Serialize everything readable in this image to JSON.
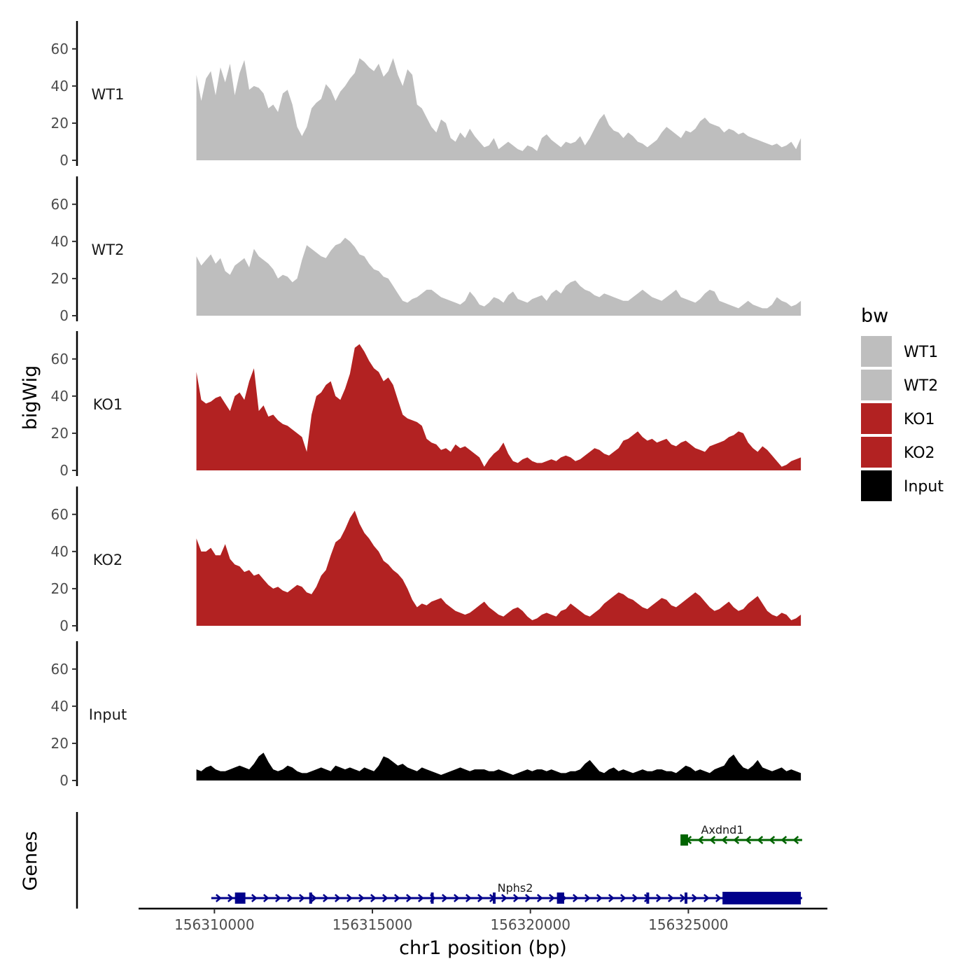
{
  "chart_data": {
    "type": "area",
    "chromosome": "chr1",
    "xlabel": "chr1 position (bp)",
    "ylabel": "bigWig",
    "xlim": [
      156307600,
      156329400
    ],
    "x_ticks": [
      156310000,
      156315000,
      156320000,
      156325000
    ],
    "x_tick_labels": [
      "156310000",
      "156315000",
      "156320000",
      "156325000"
    ],
    "ylim": [
      0,
      75
    ],
    "y_ticks": [
      0,
      20,
      40,
      60
    ],
    "y_tick_labels": [
      "0",
      "20",
      "40",
      "60"
    ],
    "data_range": [
      156309430,
      156328560
    ],
    "series": [
      {
        "name": "WT1",
        "color": "#bebebe",
        "values": [
          46,
          32,
          44,
          48,
          35,
          50,
          42,
          52,
          35,
          47,
          54,
          38,
          40,
          39,
          36,
          28,
          30,
          26,
          36,
          38,
          30,
          18,
          13,
          18,
          28,
          31,
          33,
          41,
          38,
          32,
          37,
          40,
          44,
          47,
          55,
          53,
          50,
          48,
          52,
          45,
          48,
          55,
          46,
          40,
          49,
          46,
          30,
          28,
          23,
          18,
          15,
          22,
          20,
          12,
          10,
          15,
          12,
          17,
          13,
          10,
          7,
          8,
          12,
          6,
          8,
          10,
          8,
          6,
          5,
          8,
          7,
          5,
          12,
          14,
          11,
          9,
          7,
          10,
          9,
          10,
          13,
          8,
          12,
          17,
          22,
          25,
          19,
          16,
          15,
          12,
          15,
          13,
          10,
          9,
          7,
          9,
          11,
          15,
          18,
          16,
          14,
          12,
          16,
          15,
          17,
          21,
          23,
          20,
          19,
          18,
          15,
          17,
          16,
          14,
          15,
          13,
          12,
          11,
          10,
          9,
          8,
          9,
          7,
          8,
          10,
          6,
          12
        ]
      },
      {
        "name": "WT2",
        "color": "#bebebe",
        "values": [
          32,
          27,
          30,
          33,
          28,
          31,
          24,
          22,
          27,
          29,
          31,
          26,
          36,
          32,
          30,
          28,
          25,
          20,
          22,
          21,
          18,
          20,
          30,
          38,
          36,
          34,
          32,
          31,
          35,
          38,
          39,
          42,
          40,
          37,
          33,
          32,
          28,
          25,
          24,
          21,
          20,
          16,
          12,
          8,
          7,
          9,
          10,
          12,
          14,
          14,
          12,
          10,
          9,
          8,
          7,
          6,
          8,
          13,
          10,
          6,
          5,
          7,
          10,
          9,
          7,
          11,
          13,
          9,
          8,
          7,
          9,
          10,
          11,
          8,
          12,
          14,
          12,
          16,
          18,
          19,
          16,
          14,
          13,
          11,
          10,
          12,
          11,
          10,
          9,
          8,
          8,
          10,
          12,
          14,
          12,
          10,
          9,
          8,
          10,
          12,
          14,
          10,
          9,
          8,
          7,
          9,
          12,
          14,
          13,
          8,
          7,
          6,
          5,
          4,
          6,
          8,
          6,
          5,
          4,
          4,
          6,
          10,
          8,
          7,
          5,
          6,
          8
        ]
      },
      {
        "name": "KO1",
        "color": "#b22222",
        "values": [
          53,
          38,
          36,
          37,
          39,
          40,
          36,
          32,
          40,
          42,
          38,
          48,
          55,
          32,
          35,
          29,
          30,
          27,
          25,
          24,
          22,
          20,
          18,
          10,
          30,
          40,
          42,
          46,
          48,
          40,
          38,
          44,
          52,
          66,
          68,
          64,
          59,
          55,
          53,
          48,
          50,
          46,
          38,
          30,
          28,
          27,
          26,
          24,
          17,
          15,
          14,
          11,
          12,
          10,
          14,
          12,
          13,
          11,
          9,
          7,
          2,
          6,
          9,
          11,
          15,
          9,
          5,
          4,
          6,
          7,
          5,
          4,
          4,
          5,
          6,
          5,
          7,
          8,
          7,
          5,
          6,
          8,
          10,
          12,
          11,
          9,
          8,
          10,
          12,
          16,
          17,
          19,
          21,
          18,
          16,
          17,
          15,
          16,
          17,
          14,
          13,
          15,
          16,
          14,
          12,
          11,
          10,
          13,
          14,
          15,
          16,
          18,
          19,
          21,
          20,
          15,
          12,
          10,
          13,
          11,
          8,
          5,
          2,
          3,
          5,
          6,
          7
        ]
      },
      {
        "name": "KO2",
        "color": "#b22222",
        "values": [
          47,
          40,
          40,
          42,
          38,
          38,
          44,
          36,
          33,
          32,
          29,
          30,
          27,
          28,
          25,
          22,
          20,
          21,
          19,
          18,
          20,
          22,
          21,
          18,
          17,
          21,
          27,
          30,
          38,
          45,
          47,
          52,
          58,
          62,
          55,
          50,
          47,
          43,
          40,
          35,
          33,
          30,
          28,
          25,
          20,
          14,
          10,
          12,
          11,
          13,
          14,
          15,
          12,
          10,
          8,
          7,
          6,
          7,
          9,
          11,
          13,
          10,
          8,
          6,
          5,
          7,
          9,
          10,
          8,
          5,
          3,
          4,
          6,
          7,
          6,
          5,
          8,
          9,
          12,
          10,
          8,
          6,
          5,
          7,
          9,
          12,
          14,
          16,
          18,
          17,
          15,
          14,
          12,
          10,
          9,
          11,
          13,
          15,
          14,
          11,
          10,
          12,
          14,
          16,
          18,
          16,
          13,
          10,
          8,
          9,
          11,
          13,
          10,
          8,
          9,
          12,
          14,
          16,
          12,
          8,
          6,
          5,
          7,
          6,
          3,
          4,
          6
        ]
      },
      {
        "name": "Input",
        "color": "#000000",
        "values": [
          6,
          5,
          7,
          8,
          6,
          5,
          5,
          6,
          7,
          8,
          7,
          6,
          9,
          13,
          15,
          10,
          6,
          5,
          6,
          8,
          7,
          5,
          4,
          4,
          5,
          6,
          7,
          6,
          5,
          8,
          7,
          6,
          7,
          6,
          5,
          7,
          6,
          5,
          8,
          13,
          12,
          10,
          8,
          9,
          7,
          6,
          5,
          7,
          6,
          5,
          4,
          3,
          4,
          5,
          6,
          7,
          6,
          5,
          6,
          6,
          6,
          5,
          5,
          6,
          5,
          4,
          3,
          4,
          5,
          6,
          5,
          6,
          6,
          5,
          6,
          5,
          4,
          4,
          5,
          5,
          6,
          9,
          11,
          8,
          5,
          4,
          6,
          7,
          5,
          6,
          5,
          4,
          5,
          6,
          5,
          5,
          6,
          6,
          5,
          5,
          4,
          6,
          8,
          7,
          5,
          6,
          5,
          4,
          6,
          7,
          8,
          12,
          14,
          10,
          7,
          6,
          8,
          11,
          7,
          6,
          5,
          6,
          7,
          5,
          6,
          5,
          4
        ]
      }
    ],
    "legend": {
      "title": "bw",
      "position": "right",
      "entries": [
        {
          "label": "WT1",
          "color": "#bebebe"
        },
        {
          "label": "WT2",
          "color": "#bebebe"
        },
        {
          "label": "KO1",
          "color": "#b22222"
        },
        {
          "label": "KO2",
          "color": "#b22222"
        },
        {
          "label": "Input",
          "color": "#000000"
        }
      ]
    },
    "genes_track": {
      "title": "Genes",
      "genes": [
        {
          "name": "Axdnd1",
          "strand": "-",
          "color": "#006400",
          "start": 156324800,
          "end": 156328600,
          "exons": [
            [
              156324750,
              156324990
            ]
          ]
        },
        {
          "name": "Nphs2",
          "strand": "+",
          "color": "#00008b",
          "start": 156309900,
          "end": 156328600,
          "exons": [
            [
              156310650,
              156310980
            ],
            [
              156313000,
              156313090
            ],
            [
              156316850,
              156316920
            ],
            [
              156318810,
              156318880
            ],
            [
              156320840,
              156321070
            ],
            [
              156323670,
              156323720
            ],
            [
              156324880,
              156324940
            ],
            [
              156326080,
              156328560
            ]
          ]
        }
      ]
    }
  }
}
